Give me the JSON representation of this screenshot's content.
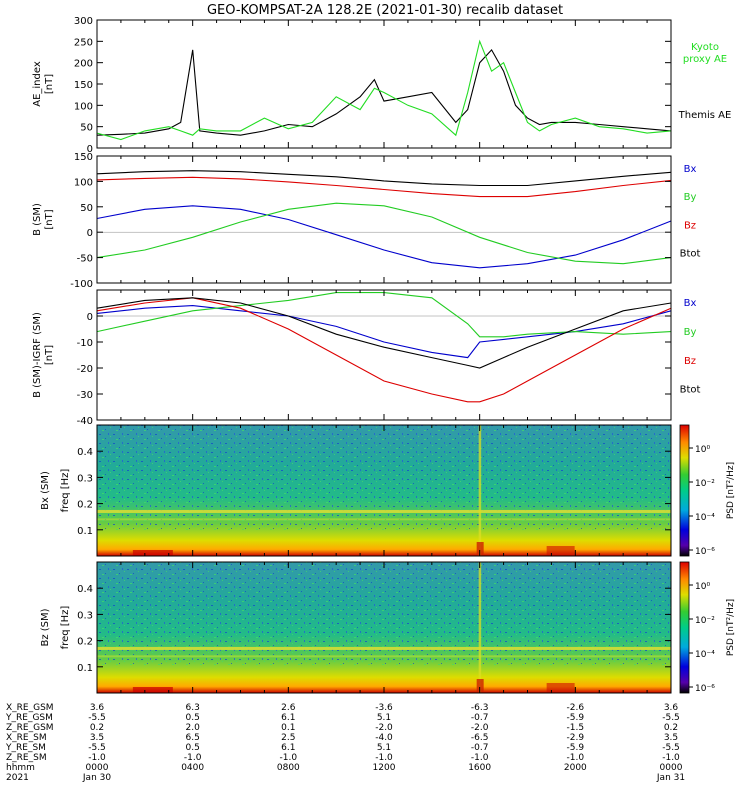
{
  "title": "GEO-KOMPSAT-2A 128.2E (2021-01-30) recalib dataset",
  "colors": {
    "black": "#000000",
    "blue": "#0000cc",
    "green": "#22cc22",
    "red": "#dd0000",
    "proxy": "#22dd22"
  },
  "xaxis": {
    "hhmm_ticks": [
      "0000",
      "0400",
      "0800",
      "1200",
      "1600",
      "2000",
      "0000"
    ],
    "date_ticks": [
      "Jan 30",
      "",
      "",
      "",
      "",
      "",
      "Jan 31"
    ],
    "row_labels": [
      "X_RE_GSM",
      "Y_RE_GSM",
      "Z_RE_GSM",
      "X_RE_SM",
      "Y_RE_SM",
      "Z_RE_SM",
      "hhmm",
      "2021"
    ],
    "rows": [
      [
        "3.6",
        "6.3",
        "2.6",
        "-3.6",
        "-6.3",
        "-2.6",
        "3.6"
      ],
      [
        "-5.5",
        "0.5",
        "6.1",
        "5.1",
        "-0.7",
        "-5.9",
        "-5.5"
      ],
      [
        "0.2",
        "2.0",
        "0.1",
        "-2.0",
        "-2.0",
        "-1.5",
        "0.2"
      ],
      [
        "3.5",
        "6.5",
        "2.5",
        "-4.0",
        "-6.5",
        "-2.9",
        "3.5"
      ],
      [
        "-5.5",
        "0.5",
        "6.1",
        "5.1",
        "-0.7",
        "-5.9",
        "-5.5"
      ],
      [
        "-1.0",
        "-1.0",
        "-1.0",
        "-1.0",
        "-1.0",
        "-1.0",
        "-1.0"
      ]
    ]
  },
  "chart_data": [
    {
      "type": "line",
      "panel": "ae",
      "ylabel": "AE_index",
      "yunit": "[nT]",
      "ylim": [
        0,
        300
      ],
      "yticks": [
        "0",
        "50",
        "100",
        "150",
        "200",
        "250",
        "300"
      ],
      "xlabel": "hhmm",
      "x_hours": [
        0,
        1,
        2,
        3,
        3.5,
        4,
        4.3,
        5,
        6,
        7,
        8,
        9,
        10,
        11,
        11.6,
        12,
        13,
        14,
        15,
        15.5,
        16,
        16.5,
        17,
        17.5,
        18,
        18.5,
        19,
        20,
        21,
        22,
        23,
        24
      ],
      "series": [
        {
          "name": "Themis AE",
          "color": "#000000",
          "values": [
            30,
            32,
            35,
            45,
            60,
            230,
            40,
            35,
            30,
            40,
            55,
            50,
            80,
            120,
            160,
            110,
            120,
            130,
            60,
            90,
            200,
            230,
            180,
            100,
            70,
            55,
            60,
            60,
            55,
            50,
            45,
            40
          ]
        },
        {
          "name": "Kyoto proxy AE",
          "color": "#22dd22",
          "values": [
            35,
            20,
            40,
            50,
            40,
            30,
            45,
            40,
            40,
            70,
            45,
            60,
            120,
            90,
            140,
            130,
            100,
            80,
            30,
            130,
            250,
            180,
            200,
            130,
            60,
            40,
            55,
            70,
            50,
            45,
            35,
            40
          ]
        }
      ],
      "legend": [
        [
          "Kyoto",
          "#22dd22"
        ],
        [
          "proxy AE",
          "#22dd22"
        ],
        [
          "Themis AE",
          "#000000"
        ]
      ]
    },
    {
      "type": "line",
      "panel": "b",
      "ylabel": "B (SM)",
      "yunit": "[nT]",
      "ylim": [
        -100,
        150
      ],
      "yticks": [
        "-100",
        "-50",
        "0",
        "50",
        "100",
        "150"
      ],
      "xlabel": "hhmm",
      "x_hours": [
        0,
        2,
        4,
        6,
        8,
        10,
        12,
        14,
        16,
        18,
        20,
        22,
        24
      ],
      "series": [
        {
          "name": "Bx",
          "color": "#0000cc",
          "values": [
            27,
            45,
            52,
            45,
            25,
            -5,
            -35,
            -60,
            -70,
            -62,
            -45,
            -15,
            22
          ]
        },
        {
          "name": "By",
          "color": "#22cc22",
          "values": [
            -50,
            -35,
            -10,
            20,
            45,
            57,
            52,
            30,
            -10,
            -40,
            -57,
            -62,
            -50
          ]
        },
        {
          "name": "Bz",
          "color": "#dd0000",
          "values": [
            103,
            106,
            108,
            105,
            99,
            92,
            84,
            76,
            70,
            70,
            80,
            92,
            102
          ]
        },
        {
          "name": "Btot",
          "color": "#000000",
          "values": [
            115,
            119,
            121,
            119,
            114,
            109,
            101,
            95,
            92,
            92,
            101,
            110,
            118
          ]
        }
      ],
      "legend": [
        [
          "Bx",
          "#0000cc"
        ],
        [
          "By",
          "#22cc22"
        ],
        [
          "Bz",
          "#dd0000"
        ],
        [
          "Btot",
          "#000000"
        ]
      ]
    },
    {
      "type": "line",
      "panel": "db",
      "ylabel": "B (SM)-IGRF (SM)",
      "yunit": "[nT]",
      "ylim": [
        -40,
        10
      ],
      "yticks": [
        "-40",
        "-30",
        "-20",
        "-10",
        "0"
      ],
      "xlabel": "hhmm",
      "x_hours": [
        0,
        2,
        4,
        6,
        8,
        10,
        12,
        14,
        15.5,
        16,
        17,
        18,
        20,
        22,
        24
      ],
      "series": [
        {
          "name": "Bx",
          "color": "#0000cc",
          "values": [
            1,
            3,
            4,
            2,
            0,
            -4,
            -10,
            -14,
            -16,
            -10,
            -9,
            -8,
            -6,
            -3,
            2
          ]
        },
        {
          "name": "By",
          "color": "#22cc22",
          "values": [
            -6,
            -2,
            2,
            4,
            6,
            9,
            9,
            7,
            -3,
            -8,
            -8,
            -7,
            -6,
            -7,
            -6
          ]
        },
        {
          "name": "Bz",
          "color": "#dd0000",
          "values": [
            2,
            5,
            7,
            3,
            -5,
            -15,
            -25,
            -30,
            -33,
            -33,
            -30,
            -25,
            -15,
            -5,
            3
          ]
        },
        {
          "name": "Btot",
          "color": "#000000",
          "values": [
            3,
            6,
            7,
            5,
            0,
            -7,
            -12,
            -16,
            -19,
            -20,
            -16,
            -12,
            -5,
            2,
            5
          ]
        }
      ],
      "legend": [
        [
          "Bx",
          "#0000cc"
        ],
        [
          "By",
          "#22cc22"
        ],
        [
          "Bz",
          "#dd0000"
        ],
        [
          "Btot",
          "#000000"
        ]
      ]
    },
    {
      "type": "heatmap",
      "panel": "spec_bx",
      "ylabel": "Bx (SM)",
      "ylabel2": "freq [Hz]",
      "ylim": [
        0,
        0.5
      ],
      "yticks": [
        "0.1",
        "0.2",
        "0.3",
        "0.4"
      ],
      "colorbar_label": "PSD [nT²/Hz]",
      "colorbar_ticks": [
        "10⁰",
        "10⁻²",
        "10⁻⁴",
        "10⁻⁶"
      ]
    },
    {
      "type": "heatmap",
      "panel": "spec_bz",
      "ylabel": "Bz (SM)",
      "ylabel2": "freq [Hz]",
      "ylim": [
        0,
        0.5
      ],
      "yticks": [
        "0.1",
        "0.2",
        "0.3",
        "0.4"
      ],
      "colorbar_label": "PSD [nT²/Hz]",
      "colorbar_ticks": [
        "10⁰",
        "10⁻²",
        "10⁻⁴",
        "10⁻⁶"
      ]
    }
  ]
}
